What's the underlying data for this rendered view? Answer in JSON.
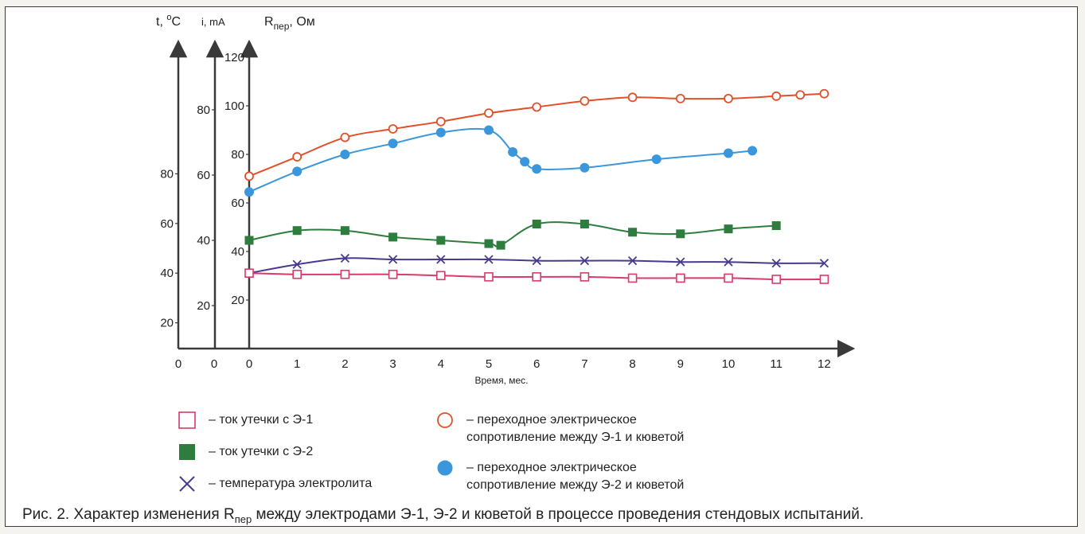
{
  "chart_data": {
    "type": "line",
    "xlabel": "Время, мес.",
    "x_ticks": [
      0,
      1,
      2,
      3,
      4,
      5,
      6,
      7,
      8,
      9,
      10,
      11,
      12
    ],
    "axes": {
      "temperature": {
        "title": "t, °C",
        "ticks": [
          "20",
          "40",
          "60",
          "80"
        ],
        "tick_values": [
          20,
          40,
          60,
          80
        ],
        "range": [
          0,
          80
        ]
      },
      "current": {
        "title": "i, mA",
        "ticks": [
          "20",
          "40",
          "60",
          "80"
        ],
        "tick_values": [
          20,
          40,
          60,
          80
        ],
        "range": [
          0,
          80
        ]
      },
      "resistance": {
        "title": "Rпер, Ом",
        "ticks": [
          "20",
          "40",
          "60",
          "80",
          "100",
          "120"
        ],
        "tick_values": [
          20,
          40,
          60,
          80,
          100,
          120
        ],
        "range": [
          0,
          120
        ]
      }
    },
    "series": [
      {
        "name": "переходное электрическое сопротивление между Э-1 и кюветой",
        "axis": "resistance",
        "color": "#e0502a",
        "marker": "circle-open",
        "x": [
          0,
          1,
          2,
          3,
          4,
          5,
          6,
          7,
          8,
          9,
          10,
          11,
          11.5,
          12
        ],
        "y": [
          71,
          79,
          87,
          90.5,
          93.5,
          97,
          99.5,
          102,
          103.5,
          103,
          103,
          104,
          104.5,
          105
        ]
      },
      {
        "name": "переходное электрическое сопротивление между Э-2 и кюветой",
        "axis": "resistance",
        "color": "#3a97dc",
        "marker": "circle-filled",
        "x": [
          0,
          1,
          2,
          3,
          4,
          5,
          5.5,
          5.75,
          6,
          7,
          8.5,
          10,
          10.5
        ],
        "y": [
          64.5,
          73,
          80,
          84.5,
          89,
          90,
          81,
          77,
          74,
          74.5,
          78,
          80.5,
          81.5
        ]
      },
      {
        "name": "ток утечки с Э-2",
        "axis": "current",
        "color": "#2f7d3e",
        "marker": "square-filled",
        "x": [
          0,
          1,
          2,
          3,
          4,
          5,
          5.25,
          6,
          7,
          8,
          9,
          10,
          11
        ],
        "y": [
          40,
          43,
          43,
          41,
          40,
          39,
          38.5,
          45,
          45,
          42.5,
          42,
          43.5,
          44.5
        ]
      },
      {
        "name": "температура электролита",
        "axis": "temperature",
        "color": "#4a3a8c",
        "marker": "x",
        "x": [
          0,
          1,
          2,
          3,
          4,
          5,
          6,
          7,
          8,
          9,
          10,
          11,
          12
        ],
        "y": [
          40,
          43.5,
          46,
          45.5,
          45.5,
          45.5,
          45,
          45,
          45,
          44.5,
          44.5,
          44,
          44
        ]
      },
      {
        "name": "ток утечки с Э-1",
        "axis": "temperature",
        "color": "#d83a6a",
        "marker": "square-open",
        "x": [
          0,
          1,
          2,
          3,
          4,
          5,
          6,
          7,
          8,
          9,
          10,
          11,
          12
        ],
        "y": [
          40,
          39.5,
          39.5,
          39.5,
          39,
          38.5,
          38.5,
          38.5,
          38,
          38,
          38,
          37.5,
          37.5
        ]
      }
    ]
  },
  "legend": [
    {
      "marker": "square-open",
      "color": "#d83a6a",
      "lines": [
        "– ток утечки с Э-1"
      ]
    },
    {
      "marker": "square-filled",
      "color": "#2f7d3e",
      "lines": [
        "– ток утечки с Э-2"
      ]
    },
    {
      "marker": "x",
      "color": "#4a3a8c",
      "lines": [
        "– температура электролита"
      ]
    },
    {
      "marker": "circle-open",
      "color": "#e0502a",
      "lines": [
        "– переходное электрическое",
        "сопротивление между Э-1 и кюветой"
      ]
    },
    {
      "marker": "circle-filled",
      "color": "#3a97dc",
      "lines": [
        "– переходное электрическое",
        "сопротивление между Э-2 и кюветой"
      ]
    }
  ],
  "caption": {
    "before": "Рис. 2. Характер изменения R",
    "sub": "пер",
    "after": " между электродами Э-1, Э-2 и кюветой в процессе проведения стендовых испытаний."
  }
}
